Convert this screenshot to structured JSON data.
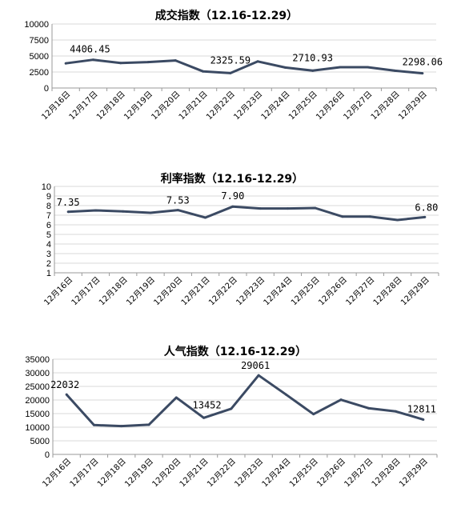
{
  "chart_data": [
    {
      "type": "line",
      "title": "成交指数（12.16-12.29）",
      "categories": [
        "12月16日",
        "12月17日",
        "12月18日",
        "12月19日",
        "12月20日",
        "12月21日",
        "12月22日",
        "12月23日",
        "12月24日",
        "12月25日",
        "12月26日",
        "12月27日",
        "12月28日",
        "12月29日"
      ],
      "values": [
        3850,
        4406.45,
        3900,
        4050,
        4300,
        2600,
        2325.59,
        4150,
        3200,
        2710.93,
        3250,
        3250,
        2700,
        2298.06
      ],
      "yticks": [
        "0",
        "2500",
        "5000",
        "7500",
        "10000"
      ],
      "ylim": [
        0,
        10000
      ],
      "grid": true,
      "color": "#3b4a63",
      "labels": [
        {
          "index": 1,
          "text": "4406.45"
        },
        {
          "index": 6,
          "text": "2325.59"
        },
        {
          "index": 9,
          "text": "2710.93"
        },
        {
          "index": 13,
          "text": "2298.06"
        }
      ]
    },
    {
      "type": "line",
      "title": "利率指数（12.16-12.29）",
      "categories": [
        "12月16日",
        "12月17日",
        "12月18日",
        "12月19日",
        "12月20日",
        "12月21日",
        "12月22日",
        "12月23日",
        "12月24日",
        "12月25日",
        "12月26日",
        "12月27日",
        "12月28日",
        "12月29日"
      ],
      "values": [
        7.35,
        7.5,
        7.4,
        7.25,
        7.53,
        6.75,
        7.9,
        7.7,
        7.7,
        7.75,
        6.85,
        6.85,
        6.5,
        6.8
      ],
      "yticks": [
        "1",
        "2",
        "3",
        "4",
        "5",
        "6",
        "7",
        "8",
        "9",
        "10"
      ],
      "ylim": [
        1,
        10
      ],
      "grid": true,
      "color": "#3b4a63",
      "labels": [
        {
          "index": 0,
          "text": "7.35"
        },
        {
          "index": 4,
          "text": "7.53"
        },
        {
          "index": 6,
          "text": "7.90"
        },
        {
          "index": 13,
          "text": "6.80"
        }
      ]
    },
    {
      "type": "line",
      "title": "人气指数（12.16-12.29）",
      "categories": [
        "12月16日",
        "12月17日",
        "12月18日",
        "12月19日",
        "12月20日",
        "12月21日",
        "12月22日",
        "12月23日",
        "12月24日",
        "12月25日",
        "12月26日",
        "12月27日",
        "12月28日",
        "12月29日"
      ],
      "values": [
        22032,
        10800,
        10400,
        10900,
        20900,
        13452,
        16800,
        29061,
        22000,
        14800,
        20100,
        17000,
        15800,
        12811
      ],
      "yticks": [
        "0",
        "5000",
        "10000",
        "15000",
        "20000",
        "25000",
        "30000",
        "35000"
      ],
      "ylim": [
        0,
        35000
      ],
      "grid": true,
      "color": "#3b4a63",
      "labels": [
        {
          "index": 0,
          "text": "22032"
        },
        {
          "index": 5,
          "text": "13452"
        },
        {
          "index": 7,
          "text": "29061"
        },
        {
          "index": 13,
          "text": "12811"
        }
      ]
    }
  ]
}
